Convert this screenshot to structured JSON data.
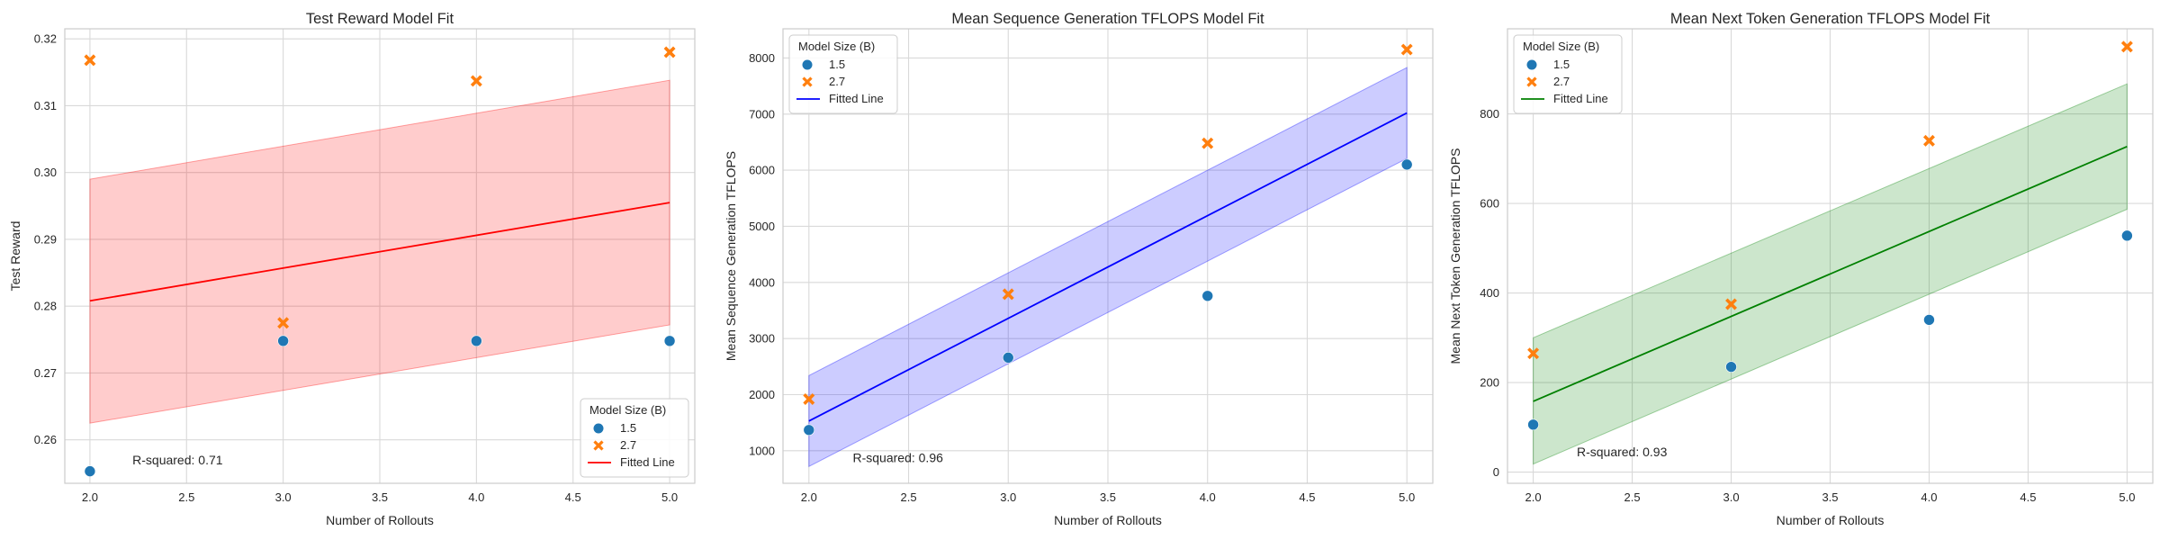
{
  "chart_data": [
    {
      "type": "scatter",
      "title": "Test Reward Model Fit",
      "xlabel": "Number of Rollouts",
      "ylabel": "Test Reward",
      "xlim": [
        1.87,
        5.13
      ],
      "ylim": [
        0.2535,
        0.3215
      ],
      "xticks": [
        "2.0",
        "2.5",
        "3.0",
        "3.5",
        "4.0",
        "4.5",
        "5.0"
      ],
      "yticks": [
        "0.26",
        "0.27",
        "0.28",
        "0.29",
        "0.30",
        "0.31",
        "0.32"
      ],
      "grid": true,
      "legend": {
        "title": "Model Size (B)",
        "placement": "lower-right",
        "entries": [
          {
            "label": "1.5",
            "marker": "circle",
            "color": "#1f77b4"
          },
          {
            "label": "2.7",
            "marker": "x",
            "color": "#ff7f0e"
          },
          {
            "label": "Fitted Line",
            "marker": "line",
            "color": "#ff0000"
          }
        ]
      },
      "series": [
        {
          "name": "1.5",
          "marker": "circle",
          "color": "#1f77b4",
          "x": [
            2,
            3,
            4,
            5
          ],
          "y": [
            0.2553,
            0.2748,
            0.2748,
            0.2748
          ]
        },
        {
          "name": "2.7",
          "marker": "x",
          "color": "#ff7f0e",
          "x": [
            2,
            3,
            4,
            5
          ],
          "y": [
            0.3168,
            0.2775,
            0.3137,
            0.318
          ]
        }
      ],
      "fit": {
        "name": "Fitted Line",
        "color": "#ff0000",
        "band_color": "#ff0000",
        "x": [
          2,
          5
        ],
        "y": [
          0.2808,
          0.2955
        ],
        "band_lower": [
          0.2625,
          0.2772
        ],
        "band_upper": [
          0.299,
          0.3138
        ]
      },
      "annotation": {
        "text": "R-squared: 0.71",
        "x": 2.22,
        "y": 0.2563
      }
    },
    {
      "type": "scatter",
      "title": "Mean Sequence Generation TFLOPS Model Fit",
      "xlabel": "Number of Rollouts",
      "ylabel": "Mean Sequence Generation TFLOPS",
      "xlim": [
        1.87,
        5.13
      ],
      "ylim": [
        420,
        8520
      ],
      "xticks": [
        "2.0",
        "2.5",
        "3.0",
        "3.5",
        "4.0",
        "4.5",
        "5.0"
      ],
      "yticks": [
        "1000",
        "2000",
        "3000",
        "4000",
        "5000",
        "6000",
        "7000",
        "8000"
      ],
      "grid": true,
      "legend": {
        "title": "Model Size (B)",
        "placement": "upper-left",
        "entries": [
          {
            "label": "1.5",
            "marker": "circle",
            "color": "#1f77b4"
          },
          {
            "label": "2.7",
            "marker": "x",
            "color": "#ff7f0e"
          },
          {
            "label": "Fitted Line",
            "marker": "line",
            "color": "#0000ff"
          }
        ]
      },
      "series": [
        {
          "name": "1.5",
          "marker": "circle",
          "color": "#1f77b4",
          "x": [
            2,
            3,
            4,
            5
          ],
          "y": [
            1370,
            2660,
            3760,
            6100
          ]
        },
        {
          "name": "2.7",
          "marker": "x",
          "color": "#ff7f0e",
          "x": [
            2,
            3,
            4,
            5
          ],
          "y": [
            1920,
            3790,
            6480,
            8150
          ]
        }
      ],
      "fit": {
        "name": "Fitted Line",
        "color": "#0000ff",
        "band_color": "#0000ff",
        "x": [
          2,
          5
        ],
        "y": [
          1530,
          7020
        ],
        "band_lower": [
          720,
          6210
        ],
        "band_upper": [
          2340,
          7830
        ]
      },
      "annotation": {
        "text": "R-squared: 0.96",
        "x": 2.22,
        "y": 800
      }
    },
    {
      "type": "scatter",
      "title": "Mean Next Token Generation TFLOPS Model Fit",
      "xlabel": "Number of Rollouts",
      "ylabel": "Mean Next Token Generation TFLOPS",
      "xlim": [
        1.87,
        5.13
      ],
      "ylim": [
        -25,
        990
      ],
      "xticks": [
        "2.0",
        "2.5",
        "3.0",
        "3.5",
        "4.0",
        "4.5",
        "5.0"
      ],
      "yticks": [
        "0",
        "200",
        "400",
        "600",
        "800"
      ],
      "grid": true,
      "legend": {
        "title": "Model Size (B)",
        "placement": "upper-left",
        "entries": [
          {
            "label": "1.5",
            "marker": "circle",
            "color": "#1f77b4"
          },
          {
            "label": "2.7",
            "marker": "x",
            "color": "#ff7f0e"
          },
          {
            "label": "Fitted Line",
            "marker": "line",
            "color": "#008000"
          }
        ]
      },
      "series": [
        {
          "name": "1.5",
          "marker": "circle",
          "color": "#1f77b4",
          "x": [
            2,
            3,
            4,
            5
          ],
          "y": [
            106,
            235,
            340,
            528
          ]
        },
        {
          "name": "2.7",
          "marker": "x",
          "color": "#ff7f0e",
          "x": [
            2,
            3,
            4,
            5
          ],
          "y": [
            265,
            375,
            740,
            950
          ]
        }
      ],
      "fit": {
        "name": "Fitted Line",
        "color": "#008000",
        "band_color": "#008000",
        "x": [
          2,
          5
        ],
        "y": [
          158,
          727
        ],
        "band_lower": [
          18,
          587
        ],
        "band_upper": [
          300,
          867
        ]
      },
      "annotation": {
        "text": "R-squared: 0.93",
        "x": 2.22,
        "y": 35
      }
    }
  ]
}
